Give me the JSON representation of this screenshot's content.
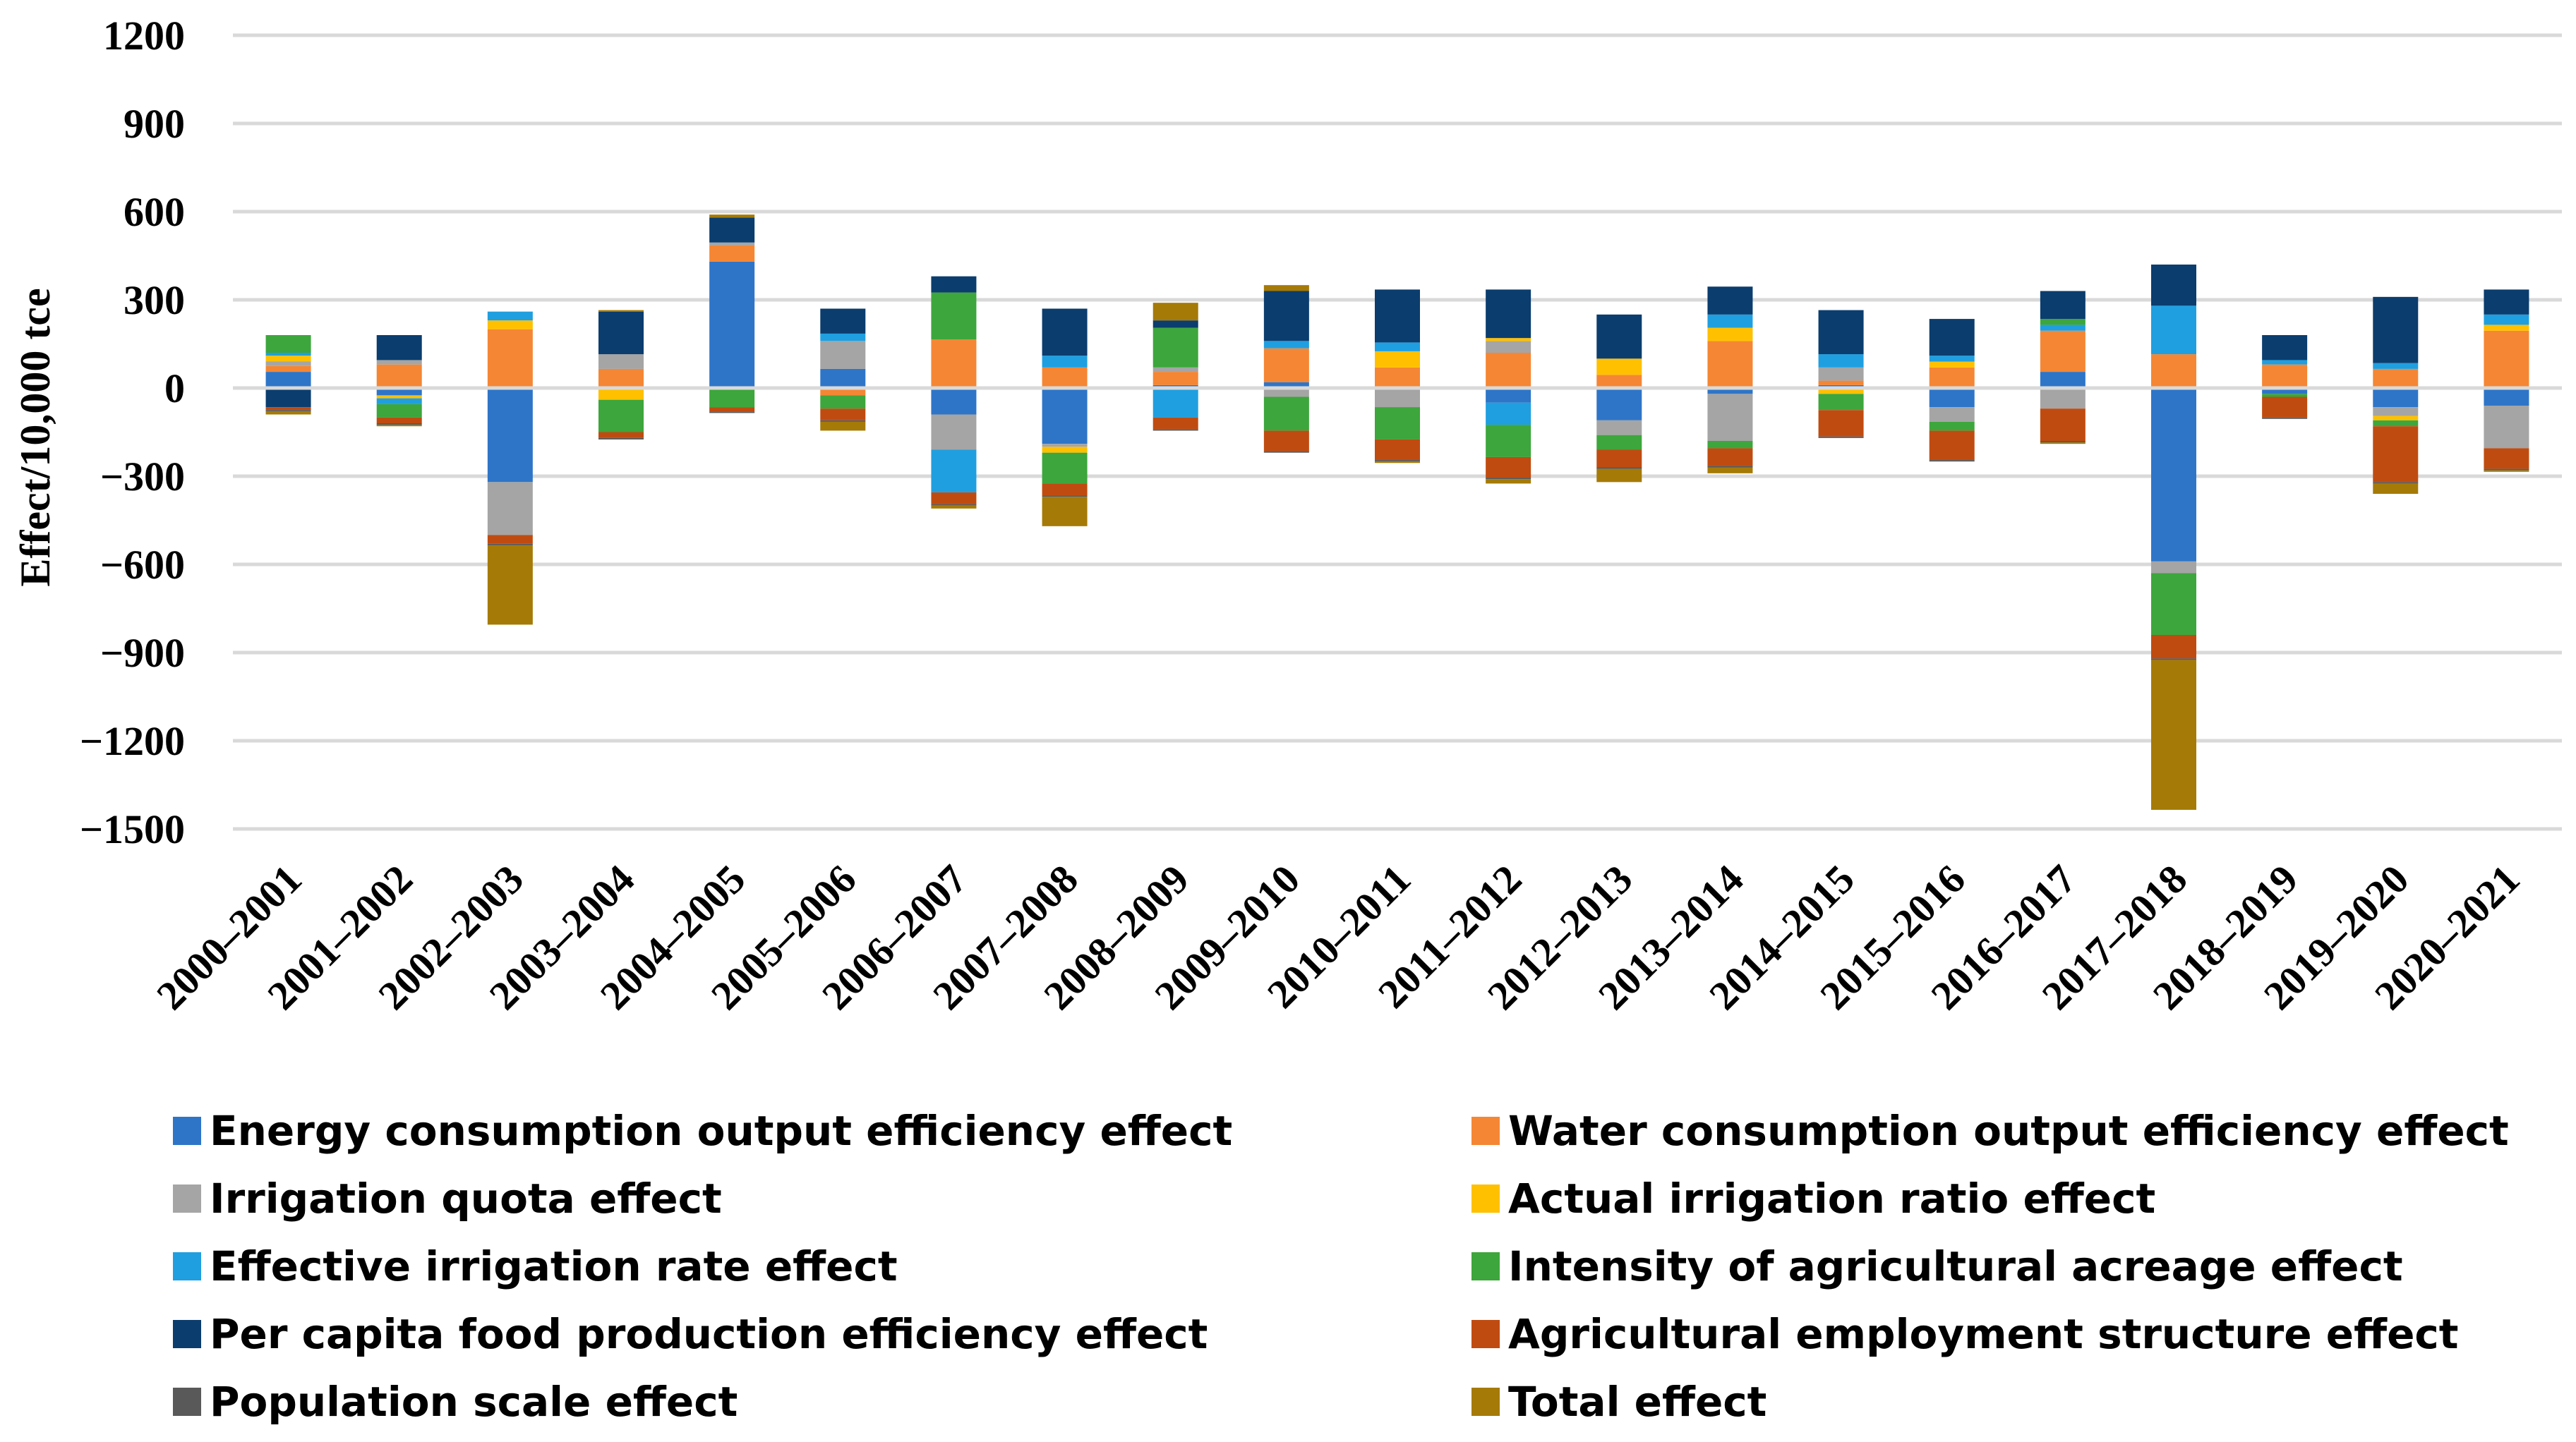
{
  "chart_data": {
    "type": "stacked-bar",
    "title": "",
    "xlabel": "",
    "ylabel": "Effect/10,000 tce",
    "ylim": [
      -1500,
      1200
    ],
    "yticks": [
      1200,
      900,
      600,
      300,
      0,
      -300,
      -600,
      -900,
      -1200,
      -1500
    ],
    "ytick_labels": [
      "1200",
      "900",
      "600",
      "300",
      "0",
      "−300",
      "−600",
      "−900",
      "−1200",
      "−1500"
    ],
    "grid": true,
    "legend_position": "bottom",
    "categories": [
      "2000–2001",
      "2001–2002",
      "2002–2003",
      "2003–2004",
      "2004–2005",
      "2005–2006",
      "2006–2007",
      "2007–2008",
      "2008–2009",
      "2009–2010",
      "2010–2011",
      "2011–2012",
      "2012–2013",
      "2013–2014",
      "2014–2015",
      "2015–2016",
      "2016–2017",
      "2017–2018",
      "2018–2019",
      "2019–2020",
      "2020–2021"
    ],
    "series": [
      {
        "name": "Energy consumption output efficiency effect",
        "color": "#2e75c8",
        "values": [
          55,
          -25,
          -320,
          0,
          430,
          65,
          -90,
          -190,
          10,
          20,
          0,
          -50,
          -110,
          -20,
          10,
          -65,
          55,
          -590,
          -20,
          -65,
          -60
        ]
      },
      {
        "name": "Water consumption output efficiency effect",
        "color": "#f58634",
        "values": [
          20,
          80,
          200,
          65,
          55,
          -25,
          165,
          70,
          45,
          115,
          70,
          120,
          45,
          160,
          15,
          70,
          140,
          115,
          80,
          65,
          195
        ]
      },
      {
        "name": "Irrigation quota effect",
        "color": "#a5a5a5",
        "values": [
          15,
          15,
          -180,
          50,
          10,
          95,
          -120,
          -10,
          15,
          -30,
          -65,
          40,
          -50,
          -160,
          45,
          -50,
          -70,
          -40,
          0,
          -30,
          -145
        ]
      },
      {
        "name": "Actual irrigation ratio effect",
        "color": "#ffc000",
        "values": [
          20,
          -10,
          30,
          -40,
          0,
          0,
          0,
          -20,
          0,
          0,
          55,
          10,
          55,
          45,
          -20,
          20,
          0,
          0,
          0,
          -15,
          20
        ]
      },
      {
        "name": "Effective irrigation rate effect",
        "color": "#1f9fe0",
        "values": [
          10,
          -20,
          30,
          0,
          0,
          25,
          -145,
          40,
          -100,
          25,
          30,
          -75,
          0,
          45,
          45,
          20,
          20,
          165,
          15,
          20,
          35
        ]
      },
      {
        "name": "Intensity of agricultural acreage effect",
        "color": "#3da63c",
        "values": [
          60,
          -45,
          0,
          -110,
          -65,
          -45,
          160,
          -105,
          135,
          -115,
          -110,
          -110,
          -50,
          -25,
          -55,
          -30,
          20,
          -210,
          -10,
          -20,
          0
        ]
      },
      {
        "name": "Per capita food production efficiency effect",
        "color": "#0b3d6e",
        "values": [
          -65,
          85,
          0,
          145,
          85,
          85,
          55,
          160,
          25,
          170,
          180,
          165,
          150,
          95,
          150,
          125,
          95,
          140,
          85,
          225,
          85
        ]
      },
      {
        "name": "Agricultural employment structure effect",
        "color": "#c04b10",
        "values": [
          -10,
          -20,
          -30,
          -20,
          -15,
          -40,
          -40,
          -40,
          -40,
          -70,
          -70,
          -70,
          -60,
          -60,
          -90,
          -100,
          -110,
          -80,
          -70,
          -190,
          -70
        ]
      },
      {
        "name": "Population scale effect",
        "color": "#595959",
        "values": [
          -5,
          -5,
          -5,
          -5,
          -5,
          -5,
          -5,
          -5,
          -5,
          -5,
          -5,
          -5,
          -5,
          -5,
          -5,
          -5,
          -5,
          -5,
          -5,
          -5,
          -5
        ]
      },
      {
        "name": "Total effect",
        "color": "#a57a06",
        "values": [
          -10,
          -5,
          -270,
          5,
          10,
          -30,
          -10,
          -100,
          60,
          20,
          -5,
          -15,
          -45,
          -20,
          0,
          0,
          -5,
          -510,
          0,
          -35,
          -5
        ]
      }
    ]
  }
}
